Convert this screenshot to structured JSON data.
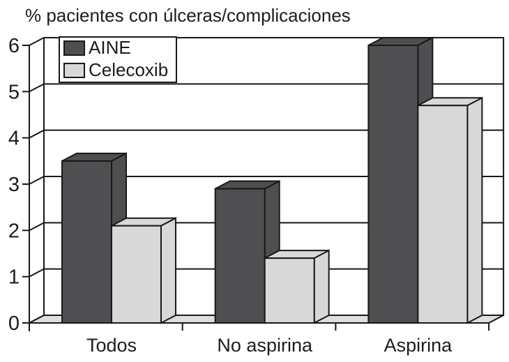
{
  "chart_data": {
    "type": "bar",
    "style": "3d-extruded-grouped",
    "title": "% pacientes con úlceras/complicaciones",
    "categories": [
      "Todos",
      "No aspirina",
      "Aspirina"
    ],
    "series": [
      {
        "name": "AINE",
        "color": "#4f4f52",
        "values": [
          3.5,
          2.9,
          6.0
        ]
      },
      {
        "name": "Celecoxib",
        "color": "#d8d8d8",
        "values": [
          2.1,
          1.4,
          4.7
        ]
      }
    ],
    "xlabel": "",
    "ylabel": "",
    "ylim": [
      0,
      6
    ],
    "yticks": [
      0,
      1,
      2,
      3,
      4,
      5,
      6
    ],
    "grid": true,
    "legend_position": "top-left",
    "colors": {
      "axis_line": "#181818",
      "floor": "#dedede",
      "wall": "#ffffff",
      "text": "#1c1c1c"
    }
  }
}
